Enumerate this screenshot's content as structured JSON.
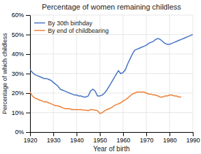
{
  "chart_data": {
    "type": "line",
    "title": "Percentage of women remaining childless",
    "x_label": "Year of birth",
    "y_label": "Percentage of which childless",
    "xlim": [
      1920,
      1990
    ],
    "ylim": [
      0,
      0.6
    ],
    "xticks": [
      1920,
      1930,
      1940,
      1950,
      1960,
      1970,
      1980,
      1990
    ],
    "yticks": [
      {
        "value": 0,
        "label": "0%"
      },
      {
        "value": 0.1,
        "label": "10%"
      },
      {
        "value": 0.2,
        "label": "20%"
      },
      {
        "value": 0.3,
        "label": "30%"
      },
      {
        "value": 0.4,
        "label": "40%"
      },
      {
        "value": 0.5,
        "label": "50%"
      },
      {
        "value": 0.6,
        "label": "60%"
      }
    ],
    "grid": true,
    "legend": "upper left",
    "x": [
      1920,
      1921,
      1922,
      1923,
      1924,
      1925,
      1926,
      1927,
      1928,
      1929,
      1930,
      1931,
      1932,
      1933,
      1934,
      1935,
      1936,
      1937,
      1938,
      1939,
      1940,
      1941,
      1942,
      1943,
      1944,
      1945,
      1946,
      1947,
      1948,
      1949,
      1950,
      1951,
      1952,
      1953,
      1954,
      1955,
      1956,
      1957,
      1958,
      1959,
      1960,
      1961,
      1962,
      1963,
      1964,
      1965,
      1966,
      1967,
      1968,
      1969,
      1970,
      1971,
      1972,
      1973,
      1974,
      1975,
      1976,
      1977,
      1978,
      1979,
      1980,
      1981,
      1982,
      1983,
      1984,
      1985,
      1986,
      1987,
      1988,
      1989,
      1990
    ],
    "series": [
      {
        "name": "By 30th birthday",
        "color": "#4472C4",
        "values": [
          0.32,
          0.305,
          0.295,
          0.29,
          0.285,
          0.28,
          0.275,
          0.275,
          0.27,
          0.265,
          0.255,
          0.245,
          0.235,
          0.22,
          0.215,
          0.21,
          0.205,
          0.2,
          0.195,
          0.19,
          0.19,
          0.185,
          0.185,
          0.18,
          0.18,
          0.185,
          0.21,
          0.22,
          0.21,
          0.185,
          0.185,
          0.19,
          0.2,
          0.215,
          0.235,
          0.255,
          0.275,
          0.295,
          0.315,
          0.3,
          0.305,
          0.32,
          0.35,
          0.375,
          0.4,
          0.42,
          0.425,
          0.43,
          0.435,
          0.44,
          0.445,
          0.455,
          0.46,
          0.465,
          0.475,
          0.48,
          0.475,
          0.465,
          0.455,
          0.45,
          0.45,
          0.455,
          0.46,
          0.465,
          0.47,
          0.475,
          0.48,
          0.485,
          0.49,
          0.495,
          0.5
        ]
      },
      {
        "name": "By end of childbearing",
        "color": "#ED7D31",
        "values": [
          0.205,
          0.185,
          0.175,
          0.17,
          0.165,
          0.16,
          0.155,
          0.155,
          0.15,
          0.145,
          0.14,
          0.135,
          0.135,
          0.13,
          0.125,
          0.12,
          0.12,
          0.12,
          0.115,
          0.115,
          0.115,
          0.115,
          0.115,
          0.113,
          0.112,
          0.11,
          0.115,
          0.115,
          0.112,
          0.11,
          0.095,
          0.1,
          0.108,
          0.115,
          0.12,
          0.125,
          0.135,
          0.14,
          0.145,
          0.15,
          0.16,
          0.165,
          0.175,
          0.185,
          0.195,
          0.2,
          0.205,
          0.205,
          0.205,
          0.205,
          0.2,
          0.195,
          0.195,
          0.19,
          0.19,
          0.185,
          0.18,
          0.18,
          0.185,
          0.185,
          0.19,
          0.19,
          0.185,
          0.185,
          0.18,
          0.18,
          null,
          null,
          null,
          null,
          null
        ]
      }
    ]
  }
}
